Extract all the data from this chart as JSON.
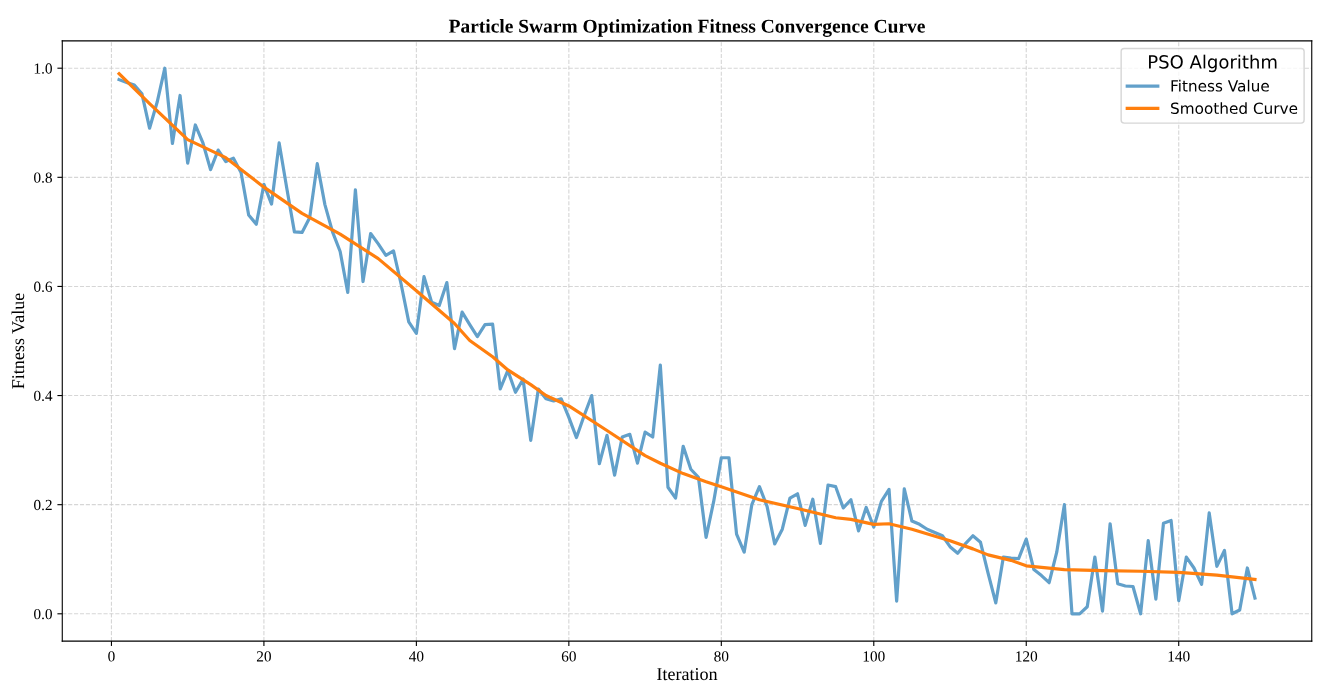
{
  "chart_data": {
    "type": "line",
    "title": "Particle Swarm Optimization Fitness Convergence Curve",
    "xlabel": "Iteration",
    "ylabel": "Fitness Value",
    "legend_title": "PSO Algorithm",
    "legend": "top right",
    "grid": true,
    "line_style": "dashed",
    "xlim": [
      -6.45,
      157.45
    ],
    "ylim": [
      -0.05,
      1.05
    ],
    "xticks": [
      0,
      20,
      40,
      60,
      80,
      100,
      120,
      140
    ],
    "yticks": [
      {
        "value": 0,
        "label": "0.0"
      },
      {
        "value": 0.2,
        "label": "0.2"
      },
      {
        "value": 0.4,
        "label": "0.4"
      },
      {
        "value": 0.6,
        "label": "0.6"
      },
      {
        "value": 0.8,
        "label": "0.8"
      },
      {
        "value": 1,
        "label": "1.0"
      }
    ],
    "series": [
      {
        "name": "Fitness Value",
        "color": "#62a0ca",
        "line_style": "solid",
        "x": [
          1,
          2,
          3,
          4,
          5,
          6,
          7,
          8,
          9,
          10,
          11,
          12,
          13,
          14,
          15,
          16,
          17,
          18,
          19,
          20,
          21,
          22,
          23,
          24,
          25,
          26,
          27,
          28,
          29,
          30,
          31,
          32,
          33,
          34,
          35,
          36,
          37,
          38,
          39,
          40,
          41,
          42,
          43,
          44,
          45,
          46,
          47,
          48,
          49,
          50,
          51,
          52,
          53,
          54,
          55,
          56,
          57,
          58,
          59,
          60,
          61,
          62,
          63,
          64,
          65,
          66,
          67,
          68,
          69,
          70,
          71,
          72,
          73,
          74,
          75,
          76,
          77,
          78,
          79,
          80,
          81,
          82,
          83,
          84,
          85,
          86,
          87,
          88,
          89,
          90,
          91,
          92,
          93,
          94,
          95,
          96,
          97,
          98,
          99,
          100,
          101,
          102,
          103,
          104,
          105,
          106,
          107,
          108,
          109,
          110,
          111,
          112,
          113,
          114,
          115,
          116,
          117,
          118,
          119,
          120,
          121,
          122,
          123,
          124,
          125,
          126,
          127,
          128,
          129,
          130,
          131,
          132,
          133,
          134,
          135,
          136,
          137,
          138,
          139,
          140,
          141,
          142,
          143,
          144,
          145,
          146,
          147,
          148,
          149,
          150
        ],
        "values": [
          0.979,
          0.974,
          0.969,
          0.953,
          0.89,
          0.938,
          1.0,
          0.862,
          0.95,
          0.826,
          0.896,
          0.863,
          0.814,
          0.85,
          0.829,
          0.835,
          0.809,
          0.731,
          0.714,
          0.787,
          0.751,
          0.863,
          0.78,
          0.7,
          0.699,
          0.726,
          0.825,
          0.75,
          0.7,
          0.664,
          0.589,
          0.777,
          0.609,
          0.697,
          0.678,
          0.657,
          0.665,
          0.604,
          0.535,
          0.514,
          0.618,
          0.571,
          0.565,
          0.607,
          0.486,
          0.553,
          0.53,
          0.508,
          0.53,
          0.531,
          0.412,
          0.446,
          0.406,
          0.43,
          0.318,
          0.412,
          0.394,
          0.39,
          0.394,
          0.36,
          0.323,
          0.363,
          0.4,
          0.275,
          0.327,
          0.254,
          0.324,
          0.329,
          0.276,
          0.333,
          0.324,
          0.456,
          0.232,
          0.212,
          0.307,
          0.265,
          0.25,
          0.14,
          0.206,
          0.286,
          0.286,
          0.146,
          0.113,
          0.2,
          0.233,
          0.197,
          0.128,
          0.155,
          0.212,
          0.22,
          0.162,
          0.21,
          0.129,
          0.236,
          0.233,
          0.194,
          0.209,
          0.152,
          0.195,
          0.159,
          0.206,
          0.228,
          0.023,
          0.229,
          0.17,
          0.164,
          0.155,
          0.149,
          0.143,
          0.123,
          0.111,
          0.128,
          0.143,
          0.131,
          0.074,
          0.02,
          0.104,
          0.102,
          0.101,
          0.137,
          0.081,
          0.07,
          0.057,
          0.113,
          0.2,
          0.0,
          0.0,
          0.013,
          0.104,
          0.005,
          0.165,
          0.055,
          0.051,
          0.05,
          0.0,
          0.134,
          0.027,
          0.166,
          0.171,
          0.024,
          0.104,
          0.084,
          0.054,
          0.185,
          0.087,
          0.116,
          0.0,
          0.007,
          0.084,
          0.029
        ]
      },
      {
        "name": "Smoothed Curve",
        "color": "#ff7f0e",
        "line_style": "solid",
        "x": [
          1,
          5,
          10,
          15,
          20,
          25,
          30,
          35,
          40,
          45,
          47,
          50,
          52,
          55,
          57,
          60,
          65,
          70,
          72,
          75,
          78,
          80,
          85,
          90,
          95,
          97,
          100,
          102,
          105,
          110,
          113,
          115,
          118,
          120,
          125,
          130,
          135,
          140,
          145,
          150
        ],
        "values": [
          0.99,
          0.935,
          0.869,
          0.836,
          0.782,
          0.734,
          0.696,
          0.651,
          0.592,
          0.532,
          0.501,
          0.471,
          0.447,
          0.42,
          0.4,
          0.381,
          0.336,
          0.29,
          0.276,
          0.257,
          0.242,
          0.233,
          0.209,
          0.193,
          0.176,
          0.173,
          0.164,
          0.165,
          0.155,
          0.134,
          0.119,
          0.108,
          0.098,
          0.088,
          0.081,
          0.079,
          0.078,
          0.076,
          0.071,
          0.063
        ]
      }
    ]
  }
}
